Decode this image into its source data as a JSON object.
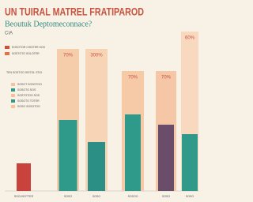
{
  "chart_data": {
    "type": "bar",
    "title": "UN TUIRAL MATREL FRATIPAROD",
    "subtitle": "Beoutuk Deptomeconnace?",
    "source": "CIA",
    "categories": [
      "SOCUSOTTER",
      "SOSO",
      "SOSO",
      "SOSOO",
      "SOSO",
      "SOSO"
    ],
    "series": [
      {
        "colors": [
          null,
          "#f6c7a0",
          "#f8cfae",
          "#f6c39a",
          "#f5c09a",
          "#f8d3b6"
        ],
        "values": [
          null,
          180,
          180,
          152,
          152,
          202
        ]
      },
      {
        "colors": [
          "#c8433b",
          "#2f9a8a",
          "#2b8f86",
          "#2f9a8a",
          "#6a4d6a",
          "#2f9a8a"
        ],
        "values": [
          35,
          90,
          62,
          97,
          84,
          72
        ]
      }
    ],
    "annotations": [
      "70%",
      "300%",
      "70%",
      "70%",
      "60%"
    ],
    "legend_items": [
      "EOSOTOR CISSTER SOS",
      "SOSTOTO SOLOTER"
    ],
    "notes": [
      "TEN SOSTOO SISTOL STIO",
      "SOSOT SOSOTOO",
      "SOSOTO SOS",
      "SOSTOTOO SOS",
      "SOSOTO TOTER",
      "SOSO SOSOTOO"
    ]
  }
}
